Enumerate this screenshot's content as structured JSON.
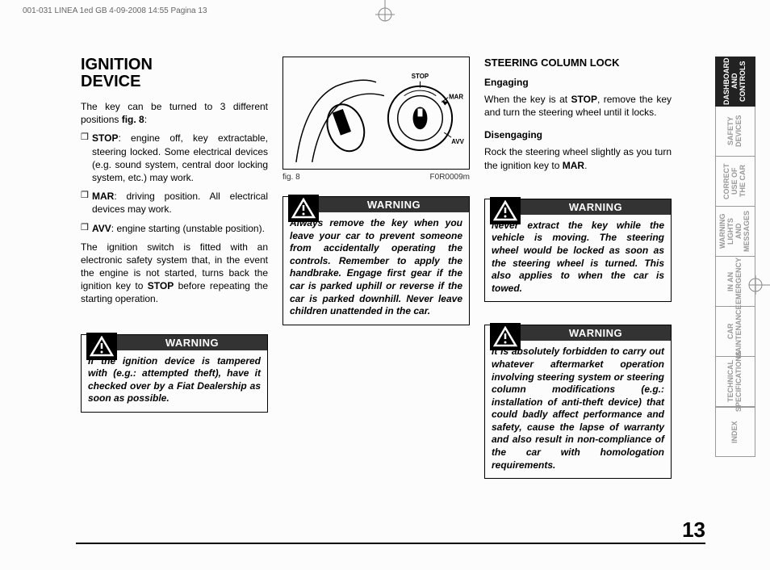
{
  "header": {
    "file_info": "001-031 LINEA 1ed GB  4-09-2008  14:55  Pagina 13"
  },
  "page_number": "13",
  "col1": {
    "title_line1": "IGNITION",
    "title_line2": "DEVICE",
    "intro": "The key can be turned to 3 different positions ",
    "intro_bold": "fig. 8",
    "intro_end": ":",
    "b1_bold": "STOP",
    "b1_text": ": engine off, key extractable, steering locked. Some electrical devices (e.g. sound system, central door locking system, etc.) may work.",
    "b2_bold": "MAR",
    "b2_text": ": driving position. All electrical devices may work.",
    "b3_bold": "AVV",
    "b3_text": ": engine starting (unstable position).",
    "para2a": "The ignition switch is fitted with an electronic safety system that, in the event the engine is not started, turns back the ignition key to ",
    "para2_bold": "STOP",
    "para2b": " before repeating the starting operation.",
    "warn1_header": "WARNING",
    "warn1_text": "If the ignition device is tampered with (e.g.: attempted theft), have it checked over by a Fiat Dealership as soon as possible."
  },
  "col2": {
    "fig_label": "fig. 8",
    "fig_code": "F0R0009m",
    "fig_labels": {
      "stop": "STOP",
      "mar": "MAR",
      "avv": "AVV"
    },
    "warn2_header": "WARNING",
    "warn2_text": "Always remove the key when you leave your car to prevent someone from accidentally operating the controls. Remember to apply the handbrake. Engage first gear if the car is parked uphill or reverse if the car is parked downhill. Never leave children unattended in the car."
  },
  "col3": {
    "section": "STEERING COLUMN LOCK",
    "sub1": "Engaging",
    "p1a": "When the key is at ",
    "p1_bold": "STOP",
    "p1b": ", remove the key and turn the steering wheel until it locks.",
    "sub2": "Disengaging",
    "p2a": "Rock the steering wheel slightly as you turn the ignition key to ",
    "p2_bold": "MAR",
    "p2b": ".",
    "warn3_header": "WARNING",
    "warn3_text": "Never extract the key while the vehicle is moving. The steering wheel would be locked as soon as the steering wheel is turned. This also applies to when the car is towed.",
    "warn4_header": "WARNING",
    "warn4_text": "It is absolutely forbidden to carry out whatever aftermarket operation involving steering system or steering column modifications (e.g.: installation of anti-theft device) that could badly affect performance and safety, cause the lapse of warranty and also result in non-compliance of the car with homologation requirements."
  },
  "tabs": [
    {
      "label": "DASHBOARD AND CONTROLS",
      "active": true
    },
    {
      "label": "SAFETY DEVICES",
      "active": false
    },
    {
      "label": "CORRECT USE OF THE CAR",
      "active": false
    },
    {
      "label": "WARNING LIGHTS AND MESSAGES",
      "active": false
    },
    {
      "label": "IN AN EMERGENCY",
      "active": false
    },
    {
      "label": "CAR MAINTENANCE",
      "active": false
    },
    {
      "label": "TECHNICAL SPECIFICATIONS",
      "active": false
    },
    {
      "label": "INDEX",
      "active": false
    }
  ],
  "colors": {
    "warn_bg": "#333333",
    "active_tab_bg": "#222222",
    "inactive_tab_fg": "#999999"
  }
}
